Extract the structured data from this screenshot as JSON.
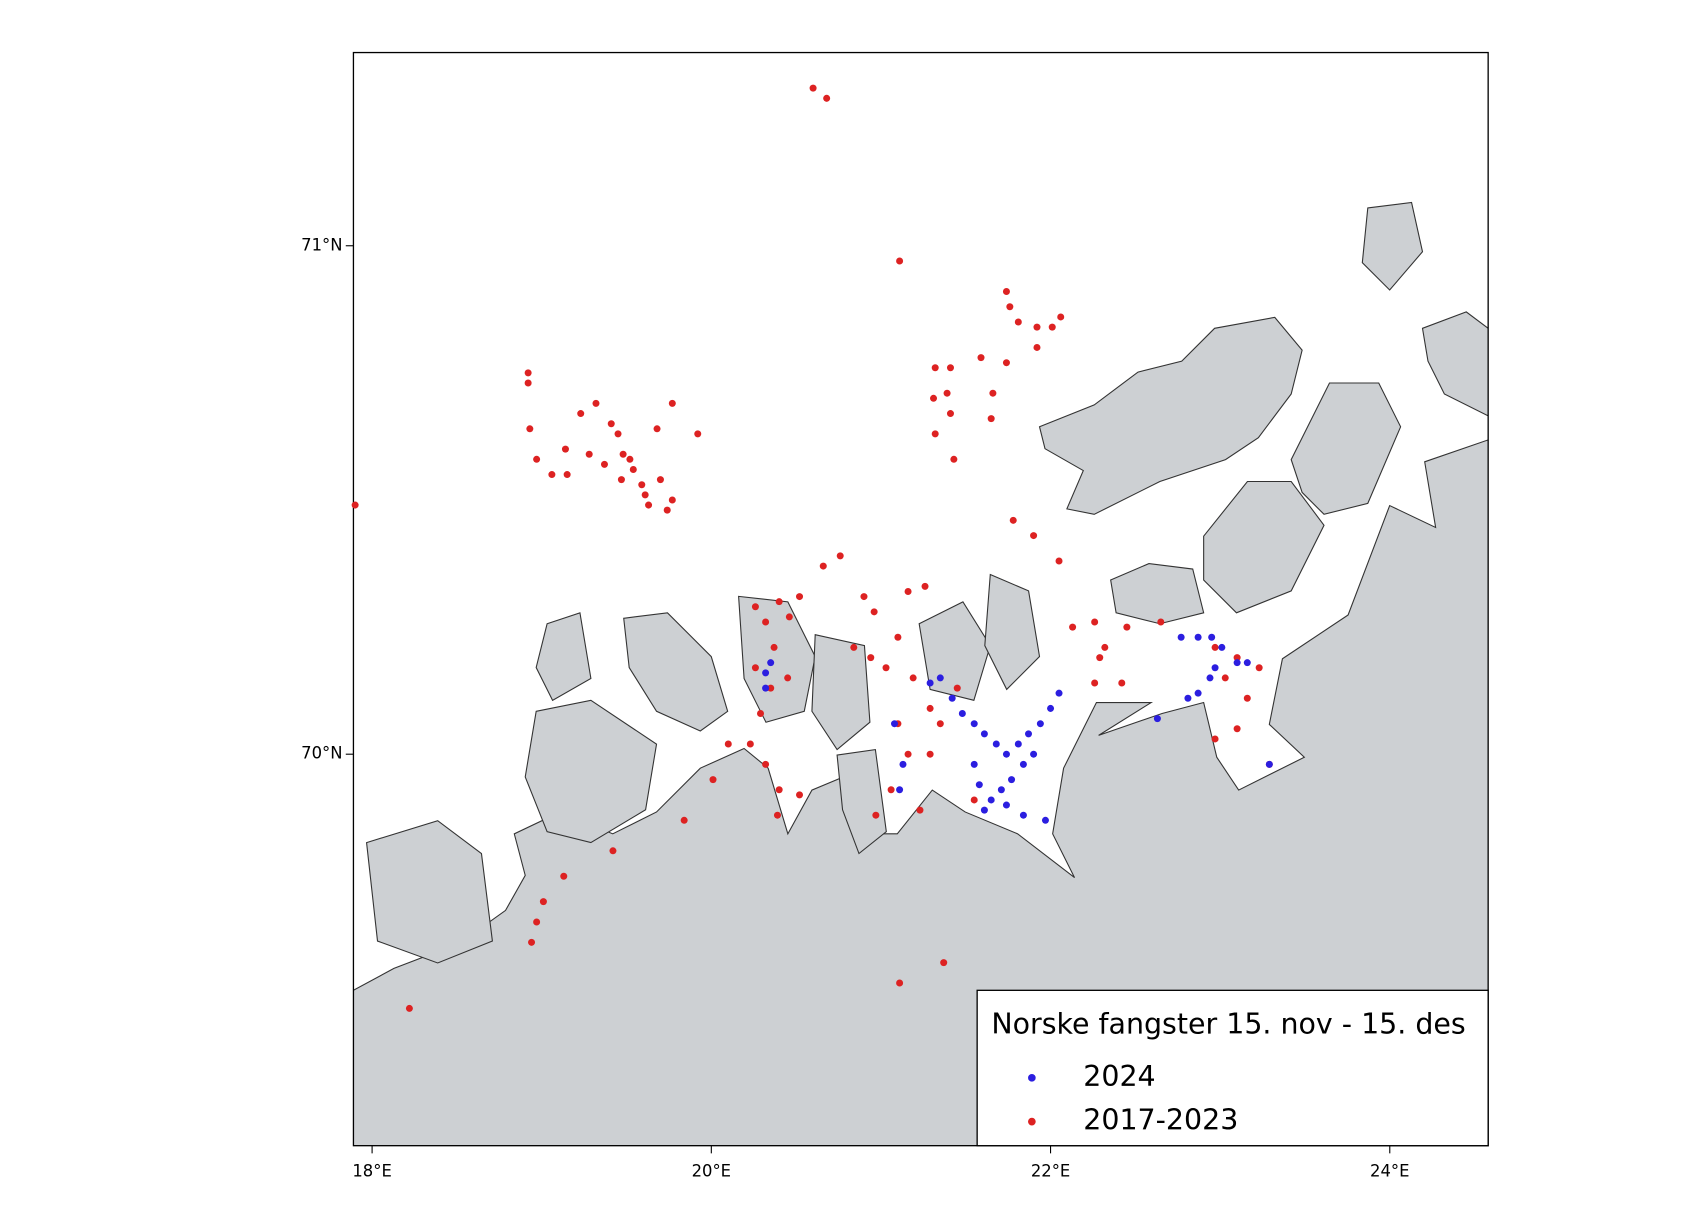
{
  "chart_data": {
    "type": "scatter",
    "legend_title": "Norske fangster 15. nov - 15. des",
    "legend": "lower right",
    "xlim": [
      17.89,
      24.58
    ],
    "ylim": [
      69.23,
      71.38
    ],
    "xticks": [
      {
        "value": 18,
        "label": "18°E"
      },
      {
        "value": 20,
        "label": "20°E"
      },
      {
        "value": 22,
        "label": "22°E"
      },
      {
        "value": 24,
        "label": "24°E"
      }
    ],
    "yticks": [
      {
        "value": 70,
        "label": "70°N"
      },
      {
        "value": 71,
        "label": "71°N"
      }
    ],
    "series": [
      {
        "name": "2024",
        "color": "#2b1ee0",
        "x": [
          20.32,
          20.32,
          20.35,
          21.29,
          21.35,
          21.42,
          21.48,
          21.55,
          21.61,
          21.68,
          21.74,
          21.81,
          21.87,
          21.9,
          21.84,
          21.77,
          21.71,
          21.65,
          21.74,
          21.84,
          21.97,
          21.94,
          22.0,
          22.05,
          21.13,
          21.11,
          21.55,
          21.58,
          21.61,
          22.63,
          22.81,
          22.87,
          22.94,
          22.97,
          22.77,
          22.87,
          22.95,
          23.01,
          23.1,
          23.16,
          23.29,
          21.08
        ],
        "y": [
          70.16,
          70.13,
          70.18,
          70.14,
          70.15,
          70.11,
          70.08,
          70.06,
          70.04,
          70.02,
          70.0,
          70.02,
          70.04,
          70.0,
          69.98,
          69.95,
          69.93,
          69.91,
          69.9,
          69.88,
          69.87,
          70.06,
          70.09,
          70.12,
          69.98,
          69.93,
          69.98,
          69.94,
          69.89,
          70.07,
          70.11,
          70.12,
          70.15,
          70.17,
          70.23,
          70.23,
          70.23,
          70.21,
          70.18,
          70.18,
          69.98,
          70.06
        ]
      },
      {
        "name": "2017-2023",
        "color": "#dd2222",
        "x": [
          20.6,
          20.68,
          21.11,
          21.74,
          21.76,
          21.81,
          21.92,
          22.01,
          22.06,
          21.92,
          21.74,
          21.59,
          21.41,
          21.32,
          21.31,
          21.39,
          21.66,
          21.65,
          21.41,
          21.32,
          21.43,
          21.78,
          21.9,
          22.05,
          18.92,
          18.92,
          18.93,
          18.97,
          19.06,
          19.14,
          19.15,
          19.23,
          19.32,
          19.28,
          19.37,
          19.41,
          19.45,
          19.48,
          19.52,
          19.47,
          19.59,
          19.63,
          19.68,
          19.7,
          19.74,
          19.77,
          19.77,
          19.92,
          19.61,
          19.54,
          17.9,
          20.26,
          20.32,
          20.4,
          20.46,
          20.52,
          20.37,
          20.26,
          20.35,
          20.45,
          20.29,
          20.1,
          20.23,
          20.32,
          20.4,
          20.39,
          20.52,
          20.66,
          20.76,
          20.9,
          20.96,
          20.84,
          20.94,
          21.03,
          21.1,
          21.16,
          21.26,
          21.19,
          21.29,
          21.1,
          21.16,
          21.06,
          20.97,
          21.23,
          21.35,
          21.45,
          21.55,
          21.29,
          21.11,
          21.37,
          20.01,
          19.84,
          19.42,
          19.13,
          19.01,
          18.97,
          18.94,
          18.22,
          22.26,
          22.29,
          22.26,
          22.32,
          22.45,
          22.42,
          22.65,
          22.97,
          23.1,
          23.03,
          23.16,
          23.23,
          23.1,
          22.97,
          23.29,
          22.13
        ],
        "y": [
          71.31,
          71.29,
          70.97,
          70.91,
          70.88,
          70.85,
          70.84,
          70.84,
          70.86,
          70.8,
          70.77,
          70.78,
          70.76,
          70.76,
          70.7,
          70.71,
          70.71,
          70.66,
          70.67,
          70.63,
          70.58,
          70.46,
          70.43,
          70.38,
          70.75,
          70.73,
          70.64,
          70.58,
          70.55,
          70.6,
          70.55,
          70.67,
          70.69,
          70.59,
          70.57,
          70.65,
          70.63,
          70.59,
          70.58,
          70.54,
          70.53,
          70.49,
          70.64,
          70.54,
          70.48,
          70.5,
          70.69,
          70.63,
          70.51,
          70.56,
          70.49,
          70.29,
          70.26,
          70.3,
          70.27,
          70.31,
          70.21,
          70.17,
          70.13,
          70.15,
          70.08,
          70.02,
          70.02,
          69.98,
          69.93,
          69.88,
          69.92,
          70.37,
          70.39,
          70.31,
          70.28,
          70.21,
          70.19,
          70.17,
          70.23,
          70.32,
          70.33,
          70.15,
          70.09,
          70.06,
          70.0,
          69.93,
          69.88,
          69.89,
          70.06,
          70.13,
          69.91,
          70.0,
          69.55,
          69.59,
          69.95,
          69.87,
          69.81,
          69.76,
          69.71,
          69.67,
          69.63,
          69.5,
          70.26,
          70.19,
          70.14,
          70.21,
          70.25,
          70.14,
          70.26,
          70.21,
          70.19,
          70.15,
          70.11,
          70.17,
          70.05,
          70.03,
          69.98,
          70.25
        ]
      }
    ]
  }
}
